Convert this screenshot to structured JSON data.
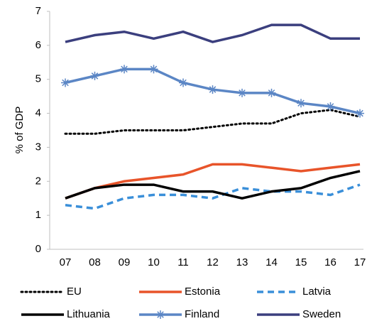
{
  "chart_data": {
    "type": "line",
    "ylabel": "% of GDP",
    "categories": [
      "07",
      "08",
      "09",
      "10",
      "11",
      "12",
      "13",
      "14",
      "15",
      "16",
      "17"
    ],
    "ylim": [
      0,
      7
    ],
    "yticks": [
      0,
      1,
      2,
      3,
      4,
      5,
      6,
      7
    ],
    "grid": false,
    "series": [
      {
        "name": "EU",
        "color": "#000000",
        "style": "dotted",
        "values": [
          3.4,
          3.4,
          3.5,
          3.5,
          3.5,
          3.6,
          3.7,
          3.7,
          4.0,
          4.1,
          3.9
        ]
      },
      {
        "name": "Estonia",
        "color": "#e8542a",
        "style": "solid",
        "values": [
          1.5,
          1.8,
          2.0,
          2.1,
          2.2,
          2.5,
          2.5,
          2.4,
          2.3,
          2.4,
          2.5
        ]
      },
      {
        "name": "Latvia",
        "color": "#3a8fd9",
        "style": "dashed",
        "values": [
          1.3,
          1.2,
          1.5,
          1.6,
          1.6,
          1.5,
          1.8,
          1.7,
          1.7,
          1.6,
          1.9
        ]
      },
      {
        "name": "Lithuania",
        "color": "#000000",
        "style": "solid",
        "values": [
          1.5,
          1.8,
          1.9,
          1.9,
          1.7,
          1.7,
          1.5,
          1.7,
          1.8,
          2.1,
          2.3
        ]
      },
      {
        "name": "Finland",
        "color": "#5b86c5",
        "style": "solid",
        "marker": "asterisk",
        "values": [
          4.9,
          5.1,
          5.3,
          5.3,
          4.9,
          4.7,
          4.6,
          4.6,
          4.3,
          4.2,
          4.0
        ]
      },
      {
        "name": "Sweden",
        "color": "#3b3f7e",
        "style": "solid",
        "values": [
          6.1,
          6.3,
          6.4,
          6.2,
          6.4,
          6.1,
          6.3,
          6.6,
          6.6,
          6.2,
          6.2
        ]
      }
    ]
  }
}
